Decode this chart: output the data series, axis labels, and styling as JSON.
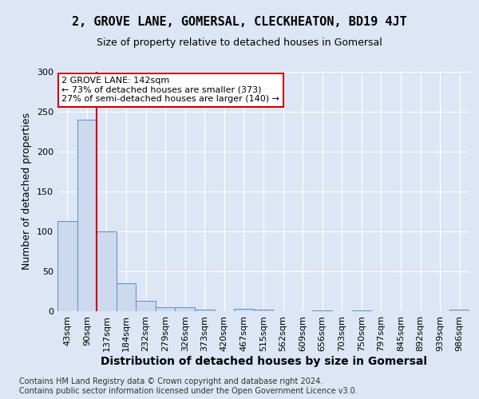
{
  "title": "2, GROVE LANE, GOMERSAL, CLECKHEATON, BD19 4JT",
  "subtitle": "Size of property relative to detached houses in Gomersal",
  "xlabel": "Distribution of detached houses by size in Gomersal",
  "ylabel": "Number of detached properties",
  "bar_color": "#ccd9ee",
  "bar_edge_color": "#5b8ec4",
  "categories": [
    "43sqm",
    "90sqm",
    "137sqm",
    "184sqm",
    "232sqm",
    "279sqm",
    "326sqm",
    "373sqm",
    "420sqm",
    "467sqm",
    "515sqm",
    "562sqm",
    "609sqm",
    "656sqm",
    "703sqm",
    "750sqm",
    "797sqm",
    "845sqm",
    "892sqm",
    "939sqm",
    "986sqm"
  ],
  "values": [
    113,
    240,
    100,
    35,
    13,
    5,
    5,
    2,
    0,
    3,
    2,
    0,
    0,
    1,
    0,
    1,
    0,
    0,
    0,
    0,
    2
  ],
  "vline_x_idx": 2,
  "vline_color": "#cc0000",
  "annotation_line1": "2 GROVE LANE: 142sqm",
  "annotation_line2": "← 73% of detached houses are smaller (373)",
  "annotation_line3": "27% of semi-detached houses are larger (140) →",
  "annotation_box_color": "#ffffff",
  "annotation_box_edge": "#cc0000",
  "ylim": [
    0,
    300
  ],
  "yticks": [
    0,
    50,
    100,
    150,
    200,
    250,
    300
  ],
  "footer": "Contains HM Land Registry data © Crown copyright and database right 2024.\nContains public sector information licensed under the Open Government Licence v3.0.",
  "background_color": "#dce6f5",
  "plot_bg_color": "#dce6f5",
  "grid_color": "#ffffff",
  "title_fontsize": 11,
  "subtitle_fontsize": 9,
  "xlabel_fontsize": 10,
  "ylabel_fontsize": 9,
  "tick_fontsize": 8,
  "annotation_fontsize": 8,
  "footer_fontsize": 7
}
